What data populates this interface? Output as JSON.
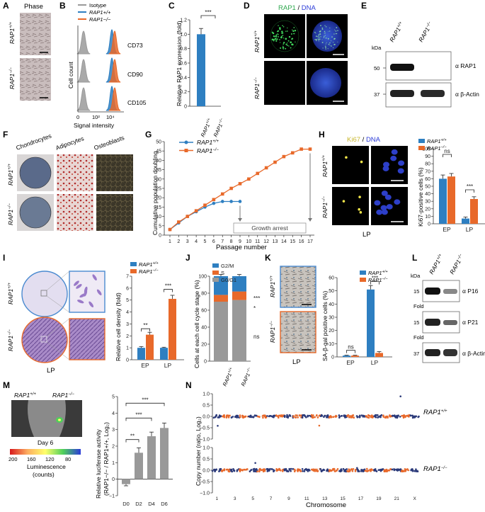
{
  "labels": {
    "A": "A",
    "B": "B",
    "C": "C",
    "D": "D",
    "E": "E",
    "F": "F",
    "G": "G",
    "H": "H",
    "I": "I",
    "J": "J",
    "K": "K",
    "L": "L",
    "M": "M",
    "N": "N"
  },
  "geno": {
    "wt": "RAP1",
    "ko": "RAP1",
    "wt_sup": "+/+",
    "ko_sup": "−/−"
  },
  "panelA": {
    "title": "Phase"
  },
  "panelB": {
    "legend": [
      "Isotype",
      "RAP1+/+",
      "RAP1−/−"
    ],
    "rows": [
      "CD73",
      "CD90",
      "CD105"
    ],
    "ylabel": "Cell count",
    "xlabel": "Signal intensity",
    "ticks": [
      "0",
      "10²",
      "10⁴"
    ]
  },
  "panelC": {
    "ylabel": "Relative RAP1 expression (fold)",
    "sig": "***",
    "yticks": [
      "0",
      "0.2",
      "0.4",
      "0.6",
      "0.8",
      "1.0",
      "1.2"
    ]
  },
  "panelD": {
    "title_a": "RAP1",
    "title_sep": " / ",
    "title_b": "DNA"
  },
  "panelE": {
    "kda": "kDa",
    "m1": "50",
    "m2": "37",
    "ab1": "α RAP1",
    "ab2": "α β-Actin"
  },
  "panelF": {
    "cols": [
      "Chondrocytes",
      "Adipocytes",
      "Osteoblasts"
    ]
  },
  "panelG": {
    "ylabel": "Cumulative population doubling",
    "xlabel": "Passage number",
    "arrest": "Growth arrest",
    "yticks": [
      "0",
      "5",
      "10",
      "15",
      "20",
      "25",
      "30",
      "35",
      "40",
      "45",
      "50"
    ],
    "xticks": [
      "1",
      "2",
      "3",
      "4",
      "5",
      "6",
      "7",
      "8",
      "9",
      "10",
      "11",
      "12",
      "13",
      "14",
      "15",
      "16",
      "17"
    ]
  },
  "panelH": {
    "title_a": "Ki67",
    "title_sep": " / ",
    "title_b": "DNA",
    "bottom": "LP",
    "ylabel": "Ki67-positive cells (%)",
    "ns": "ns",
    "sig": "***",
    "yticks": [
      "0",
      "10",
      "20",
      "30",
      "40",
      "50",
      "60",
      "70",
      "80",
      "90",
      "100"
    ],
    "groups": [
      "EP",
      "LP"
    ]
  },
  "panelI": {
    "bottom": "LP",
    "ylabel": "Relative cell density (fold)",
    "groups": [
      "EP",
      "LP"
    ],
    "sig1": "**",
    "sig2": "***",
    "yticks": [
      "0",
      "1",
      "2",
      "3",
      "4",
      "5",
      "6",
      "7"
    ]
  },
  "panelJ": {
    "ylabel": "Cells at each cell cycle stage (%)",
    "legend": [
      "G2/M",
      "S",
      "G0/G1"
    ],
    "sig": [
      "***",
      "*",
      "ns"
    ],
    "yticks": [
      "0",
      "20",
      "40",
      "60",
      "80",
      "100"
    ]
  },
  "panelK": {
    "bottom": "LP",
    "ylabel": "SA-β-gal positive cells (%)",
    "groups": [
      "EP",
      "LP"
    ],
    "ns": "ns",
    "sig": "***",
    "yticks": [
      "0",
      "10",
      "20",
      "30",
      "40",
      "50",
      "60"
    ]
  },
  "panelL": {
    "kda": "kDa",
    "m1": "15",
    "m2": "15",
    "m3": "37",
    "fold1": "Fold",
    "fold2": "Fold",
    "ab1": "α P16",
    "ab2": "α P21",
    "ab3": "α β-Actin"
  },
  "panelM": {
    "day": "Day 6",
    "scale": [
      "200",
      "160",
      "120",
      "80"
    ],
    "scale_label": "Luminescence",
    "scale_unit": "(counts)",
    "ylabel": "Relative luciferase activity",
    "ylabel2": "(RAP1−/− / RAP1+/+, Log₂)",
    "xticks": [
      "D0",
      "D2",
      "D4",
      "D6"
    ],
    "sig": [
      "**",
      "***",
      "***"
    ],
    "yticks": [
      "−1",
      "0",
      "1",
      "2",
      "3",
      "4",
      "5"
    ]
  },
  "panelN": {
    "ylabel": "Copy number (ratio, Log₂)",
    "xlabel": "Chromosome",
    "chroms": [
      "1",
      "3",
      "5",
      "7",
      "9",
      "11",
      "13",
      "15",
      "17",
      "19",
      "21",
      "X"
    ],
    "yticks": [
      "1.0",
      "0.5",
      "0.0",
      "−0.5",
      "−1.0"
    ]
  },
  "colors": {
    "wt": "#2e7fc1",
    "ko": "#e8692a",
    "iso": "#9a9a9a",
    "gray": "#999999",
    "navy": "#2b3a7a"
  },
  "chart_data": [
    {
      "type": "bar",
      "id": "C",
      "categories": [
        "RAP1+/+",
        "RAP1−/−"
      ],
      "values": [
        1.0,
        0.0
      ],
      "errors": [
        0.08,
        0
      ],
      "ylim": [
        0,
        1.2
      ],
      "ylabel": "Relative RAP1 expression (fold)"
    },
    {
      "type": "line",
      "id": "G",
      "x": [
        1,
        2,
        3,
        4,
        5,
        6,
        7,
        8,
        9,
        10,
        11,
        12,
        13,
        14,
        15,
        16,
        17
      ],
      "series": [
        {
          "name": "RAP1+/+",
          "values": [
            3,
            6.5,
            10,
            12.5,
            15,
            17,
            18,
            18,
            18,
            null,
            null,
            null,
            null,
            null,
            null,
            null,
            null
          ]
        },
        {
          "name": "RAP1−/−",
          "values": [
            3,
            7,
            10,
            13,
            16,
            19,
            22,
            25,
            27.5,
            30,
            33,
            36,
            39,
            42,
            44,
            46,
            46
          ]
        }
      ],
      "ylim": [
        0,
        50
      ],
      "xlabel": "Passage number",
      "ylabel": "Cumulative population doubling"
    },
    {
      "type": "bar",
      "id": "H",
      "categories": [
        "EP",
        "LP"
      ],
      "series": [
        {
          "name": "RAP1+/+",
          "values": [
            60,
            7
          ],
          "errors": [
            5,
            2
          ]
        },
        {
          "name": "RAP1−/−",
          "values": [
            63,
            33
          ],
          "errors": [
            4,
            3
          ]
        }
      ],
      "ylim": [
        0,
        100
      ],
      "ylabel": "Ki67-positive cells (%)"
    },
    {
      "type": "bar",
      "id": "I",
      "categories": [
        "EP",
        "LP"
      ],
      "series": [
        {
          "name": "RAP1+/+",
          "values": [
            1.0,
            1.0
          ],
          "errors": [
            0.1,
            0.05
          ]
        },
        {
          "name": "RAP1−/−",
          "values": [
            2.1,
            5.1
          ],
          "errors": [
            0.2,
            0.3
          ]
        }
      ],
      "ylim": [
        0,
        7
      ],
      "ylabel": "Relative cell density (fold)"
    },
    {
      "type": "bar",
      "id": "J",
      "categories": [
        "RAP1+/+",
        "RAP1−/−"
      ],
      "series": [
        {
          "name": "G0/G1",
          "values": [
            70,
            72
          ]
        },
        {
          "name": "S",
          "values": [
            8,
            10
          ]
        },
        {
          "name": "G2/M",
          "values": [
            22,
            18
          ]
        }
      ],
      "ylim": [
        0,
        100
      ],
      "ylabel": "Cells at each cell cycle stage (%)"
    },
    {
      "type": "bar",
      "id": "K",
      "categories": [
        "EP",
        "LP"
      ],
      "series": [
        {
          "name": "RAP1+/+",
          "values": [
            1,
            51
          ],
          "errors": [
            0.3,
            3
          ]
        },
        {
          "name": "RAP1−/−",
          "values": [
            1,
            3
          ],
          "errors": [
            0.3,
            1
          ]
        }
      ],
      "ylim": [
        0,
        60
      ],
      "ylabel": "SA-β-gal positive cells (%)"
    },
    {
      "type": "bar",
      "id": "M",
      "categories": [
        "D0",
        "D2",
        "D4",
        "D6"
      ],
      "values": [
        -0.3,
        1.6,
        2.6,
        3.1
      ],
      "errors": [
        0.1,
        0.3,
        0.25,
        0.3
      ],
      "ylim": [
        -1,
        5
      ],
      "ylabel": "Relative luciferase activity"
    }
  ]
}
